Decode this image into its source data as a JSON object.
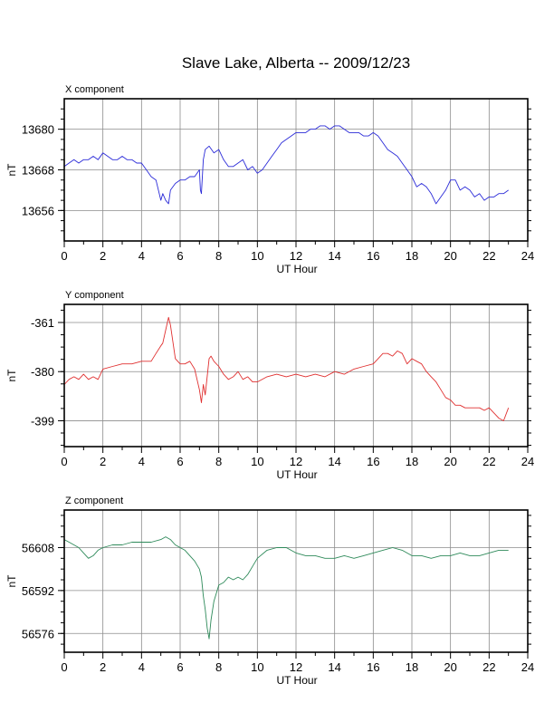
{
  "title": "Slave Lake, Alberta -- 2009/12/23",
  "chart_data": [
    {
      "type": "line",
      "panel_label": "X component",
      "xlabel": "UT Hour",
      "ylabel": "nT",
      "xlim": [
        0,
        24
      ],
      "ylim": [
        13647,
        13689
      ],
      "xticks": [
        "0",
        "2",
        "4",
        "6",
        "8",
        "10",
        "12",
        "14",
        "16",
        "18",
        "20",
        "22",
        "24"
      ],
      "yticks": [
        "13680",
        "13668",
        "13656"
      ],
      "ytick_values": [
        13680,
        13668,
        13656
      ],
      "grid": true,
      "color": "#2b2bd8",
      "x": [
        0,
        0.25,
        0.5,
        0.75,
        1,
        1.25,
        1.5,
        1.75,
        2,
        2.25,
        2.5,
        2.75,
        3,
        3.25,
        3.5,
        3.75,
        4,
        4.25,
        4.5,
        4.75,
        5,
        5.1,
        5.25,
        5.4,
        5.5,
        5.75,
        6,
        6.25,
        6.5,
        6.75,
        7,
        7.05,
        7.1,
        7.2,
        7.3,
        7.5,
        7.75,
        8,
        8.25,
        8.5,
        8.75,
        9,
        9.25,
        9.5,
        9.75,
        10,
        10.25,
        10.5,
        10.75,
        11,
        11.25,
        11.5,
        11.75,
        12,
        12.25,
        12.5,
        12.75,
        13,
        13.25,
        13.5,
        13.75,
        14,
        14.25,
        14.5,
        14.75,
        15,
        15.25,
        15.5,
        15.75,
        16,
        16.25,
        16.5,
        16.75,
        17,
        17.25,
        17.5,
        17.75,
        18,
        18.25,
        18.5,
        18.75,
        19,
        19.25,
        19.5,
        19.75,
        20,
        20.25,
        20.5,
        20.75,
        21,
        21.25,
        21.5,
        21.75,
        22,
        22.25,
        22.5,
        22.75,
        23
      ],
      "y": [
        13669,
        13670,
        13671,
        13670,
        13671,
        13671,
        13672,
        13671,
        13673,
        13672,
        13671,
        13671,
        13672,
        13671,
        13671,
        13670,
        13670,
        13668,
        13666,
        13665,
        13659,
        13661,
        13659,
        13658,
        13662,
        13664,
        13665,
        13665,
        13666,
        13666,
        13668,
        13662,
        13661,
        13671,
        13674,
        13675,
        13673,
        13674,
        13671,
        13669,
        13669,
        13670,
        13671,
        13668,
        13669,
        13667,
        13668,
        13670,
        13672,
        13674,
        13676,
        13677,
        13678,
        13679,
        13679,
        13679,
        13680,
        13680,
        13681,
        13681,
        13680,
        13681,
        13681,
        13680,
        13679,
        13679,
        13679,
        13678,
        13678,
        13679,
        13678,
        13676,
        13674,
        13673,
        13672,
        13670,
        13668,
        13666,
        13663,
        13664,
        13663,
        13661,
        13658,
        13660,
        13662,
        13665,
        13665,
        13662,
        13663,
        13662,
        13660,
        13661,
        13659,
        13660,
        13660,
        13661,
        13661,
        13662
      ]
    },
    {
      "type": "line",
      "panel_label": "Y component",
      "xlabel": "UT Hour",
      "ylabel": "nT",
      "xlim": [
        0,
        24
      ],
      "ylim": [
        -409,
        -354
      ],
      "xticks": [
        "0",
        "2",
        "4",
        "6",
        "8",
        "10",
        "12",
        "14",
        "16",
        "18",
        "20",
        "22",
        "24"
      ],
      "yticks": [
        "-361",
        "-380",
        "-399"
      ],
      "ytick_values": [
        -361,
        -380,
        -399
      ],
      "grid": true,
      "color": "#e03030",
      "x": [
        0,
        0.25,
        0.5,
        0.75,
        1,
        1.25,
        1.5,
        1.75,
        2,
        2.5,
        3,
        3.5,
        4,
        4.5,
        4.75,
        5,
        5.1,
        5.25,
        5.4,
        5.5,
        5.75,
        6,
        6.25,
        6.5,
        6.75,
        7,
        7.1,
        7.2,
        7.3,
        7.5,
        7.6,
        7.75,
        8,
        8.25,
        8.5,
        8.75,
        9,
        9.25,
        9.5,
        9.75,
        10,
        10.5,
        11,
        11.5,
        12,
        12.5,
        13,
        13.5,
        14,
        14.5,
        15,
        15.5,
        16,
        16.25,
        16.5,
        16.75,
        17,
        17.25,
        17.5,
        17.75,
        18,
        18.25,
        18.5,
        18.75,
        19,
        19.25,
        19.5,
        19.75,
        20,
        20.25,
        20.5,
        20.75,
        21,
        21.25,
        21.5,
        21.75,
        22,
        22.25,
        22.5,
        22.75,
        23
      ],
      "y": [
        -385,
        -383,
        -382,
        -383,
        -381,
        -383,
        -382,
        -383,
        -379,
        -378,
        -377,
        -377,
        -376,
        -376,
        -373,
        -370,
        -369,
        -364,
        -359,
        -362,
        -375,
        -377,
        -377,
        -376,
        -379,
        -387,
        -392,
        -385,
        -389,
        -375,
        -374,
        -376,
        -378,
        -381,
        -383,
        -382,
        -380,
        -383,
        -382,
        -384,
        -384,
        -382,
        -381,
        -382,
        -381,
        -382,
        -381,
        -382,
        -380,
        -381,
        -379,
        -378,
        -377,
        -375,
        -373,
        -373,
        -374,
        -372,
        -373,
        -377,
        -375,
        -376,
        -377,
        -380,
        -382,
        -384,
        -387,
        -390,
        -391,
        -393,
        -393,
        -394,
        -394,
        -394,
        -394,
        -395,
        -394,
        -396,
        -398,
        -399,
        -394
      ]
    },
    {
      "type": "line",
      "panel_label": "Z component",
      "xlabel": "UT Hour",
      "ylabel": "nT",
      "xlim": [
        0,
        24
      ],
      "ylim": [
        56569,
        56622
      ],
      "xticks": [
        "0",
        "2",
        "4",
        "6",
        "8",
        "10",
        "12",
        "14",
        "16",
        "18",
        "20",
        "22",
        "24"
      ],
      "yticks": [
        "56608",
        "56592",
        "56576"
      ],
      "ytick_values": [
        56608,
        56592,
        56576
      ],
      "grid": true,
      "color": "#2e8a5a",
      "x": [
        0,
        0.25,
        0.5,
        0.75,
        1,
        1.25,
        1.5,
        1.75,
        2,
        2.5,
        3,
        3.5,
        4,
        4.5,
        5,
        5.25,
        5.5,
        5.75,
        6,
        6.25,
        6.5,
        6.75,
        7,
        7.1,
        7.2,
        7.3,
        7.4,
        7.5,
        7.6,
        7.75,
        8,
        8.25,
        8.5,
        8.75,
        9,
        9.25,
        9.5,
        9.75,
        10,
        10.5,
        11,
        11.5,
        12,
        12.5,
        13,
        13.5,
        14,
        14.5,
        15,
        15.5,
        16,
        16.5,
        17,
        17.5,
        18,
        18.5,
        19,
        19.5,
        20,
        20.5,
        21,
        21.5,
        22,
        22.5,
        23
      ],
      "y": [
        56611,
        56610,
        56609,
        56608,
        56606,
        56604,
        56605,
        56607,
        56608,
        56609,
        56609,
        56610,
        56610,
        56610,
        56611,
        56612,
        56611,
        56609,
        56608,
        56607,
        56605,
        56603,
        56600,
        56597,
        56590,
        56585,
        56578,
        56574,
        56581,
        56588,
        56594,
        56595,
        56597,
        56596,
        56597,
        56596,
        56598,
        56601,
        56604,
        56607,
        56608,
        56608,
        56606,
        56605,
        56605,
        56604,
        56604,
        56605,
        56604,
        56605,
        56606,
        56607,
        56608,
        56607,
        56605,
        56605,
        56604,
        56605,
        56605,
        56606,
        56605,
        56605,
        56606,
        56607,
        56607
      ]
    }
  ]
}
